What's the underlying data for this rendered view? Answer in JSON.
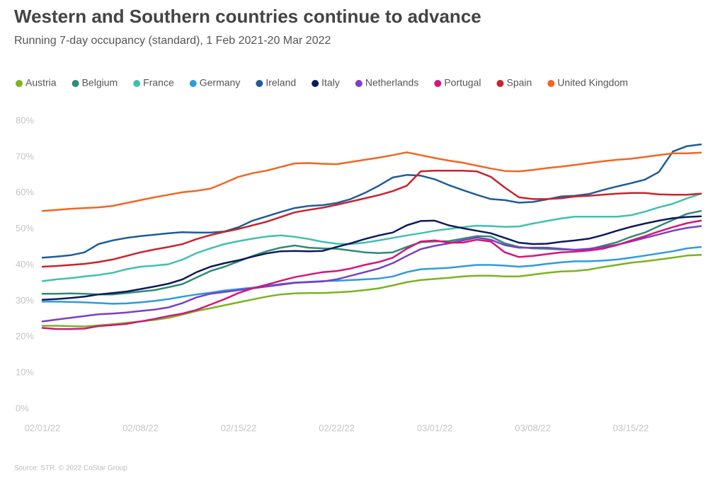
{
  "chart_data": {
    "type": "line",
    "title": "Western and Southern countries continue to advance",
    "subtitle": "Running 7-day occupancy (standard), 1 Feb 2021-20 Mar 2022",
    "source": "Source: STR. © 2022 CoStar Group",
    "categories": [
      "02/01/22",
      null,
      null,
      null,
      null,
      null,
      null,
      "02/08/22",
      null,
      null,
      null,
      null,
      null,
      null,
      "02/15/22",
      null,
      null,
      null,
      null,
      null,
      null,
      "02/22/22",
      null,
      null,
      null,
      null,
      null,
      null,
      "03/01/22",
      null,
      null,
      null,
      null,
      null,
      null,
      "03/08/22",
      null,
      null,
      null,
      null,
      null,
      null,
      "03/15/22",
      null,
      null,
      null,
      null,
      null
    ],
    "ylim": [
      0,
      80
    ],
    "yticks": [
      {
        "value": 0,
        "label": "0%"
      },
      {
        "value": 10,
        "label": "10%"
      },
      {
        "value": 20,
        "label": "20%"
      },
      {
        "value": 30,
        "label": "30%"
      },
      {
        "value": 40,
        "label": "40%"
      },
      {
        "value": 50,
        "label": "50%"
      },
      {
        "value": 60,
        "label": "60%"
      },
      {
        "value": 70,
        "label": "70%"
      },
      {
        "value": 80,
        "label": "80%"
      }
    ],
    "grid": false,
    "legend": "top",
    "series": [
      {
        "name": "Austria",
        "color": "#7ab41e",
        "values": [
          23.1,
          23.1,
          23,
          22.9,
          23.2,
          23.5,
          23.9,
          24.3,
          24.7,
          25.3,
          26.2,
          27.2,
          28,
          28.8,
          29.6,
          30.4,
          31.2,
          31.8,
          32.1,
          32.2,
          32.2,
          32.4,
          32.6,
          33,
          33.5,
          34.3,
          35.2,
          35.8,
          36.1,
          36.4,
          36.8,
          37,
          37,
          36.8,
          36.8,
          37.3,
          37.8,
          38.2,
          38.3,
          38.7,
          39.4,
          40,
          40.6,
          41,
          41.5,
          42,
          42.6,
          42.8
        ]
      },
      {
        "name": "Belgium",
        "color": "#2e8b74",
        "values": [
          32,
          32,
          32.1,
          32,
          31.8,
          31.8,
          32.2,
          32.6,
          33,
          33.8,
          34.7,
          36.5,
          38.3,
          39.5,
          41,
          42.5,
          43.8,
          44.8,
          45.4,
          44.8,
          44.6,
          44.5,
          44,
          43.5,
          43.3,
          43.5,
          45,
          46.3,
          46.5,
          46.6,
          47.3,
          48,
          47.9,
          46,
          45,
          44.6,
          44.5,
          44.3,
          44.2,
          44.3,
          45.3,
          46.3,
          47.8,
          49,
          50.8,
          52.5,
          54.2,
          55
        ]
      },
      {
        "name": "France",
        "color": "#40c0b0",
        "values": [
          35.5,
          36,
          36.3,
          36.8,
          37.2,
          37.8,
          38.8,
          39.5,
          39.8,
          40.2,
          41.5,
          43.3,
          44.6,
          45.8,
          46.6,
          47.3,
          47.9,
          48.2,
          47.8,
          47.2,
          46.4,
          45.9,
          45.8,
          46.2,
          46.8,
          47.5,
          48.2,
          48.8,
          49.5,
          50,
          50.5,
          50.9,
          50.8,
          50.6,
          50.7,
          51.5,
          52.2,
          52.9,
          53.4,
          53.4,
          53.4,
          53.4,
          53.8,
          54.8,
          56,
          57,
          58.5,
          59.8
        ]
      },
      {
        "name": "Germany",
        "color": "#2d9be0",
        "values": [
          29.8,
          29.8,
          29.7,
          29.6,
          29.4,
          29.2,
          29.3,
          29.6,
          30,
          30.5,
          31.2,
          31.8,
          32.3,
          32.9,
          33.3,
          33.7,
          34.2,
          34.7,
          35.1,
          35.3,
          35.5,
          35.6,
          35.8,
          36,
          36.2,
          36.8,
          38,
          38.8,
          39,
          39.2,
          39.6,
          40,
          40,
          39.8,
          39.5,
          39.8,
          40.3,
          40.7,
          41,
          41,
          41.2,
          41.5,
          42,
          42.6,
          43.2,
          43.8,
          44.6,
          45
        ]
      },
      {
        "name": "Ireland",
        "color": "#1f5c99",
        "values": [
          42,
          42.3,
          42.7,
          43.5,
          45.8,
          46.8,
          47.5,
          48,
          48.4,
          48.8,
          49.1,
          49,
          49,
          49.3,
          50.5,
          52.3,
          53.5,
          54.7,
          55.8,
          56.4,
          56.6,
          57.2,
          58.3,
          60,
          62,
          64.3,
          65,
          64.8,
          63.8,
          62.2,
          60.8,
          59.5,
          58.3,
          58,
          57.3,
          57.5,
          58.2,
          59,
          59.2,
          59.7,
          60.8,
          61.8,
          62.7,
          63.7,
          65.8,
          71.5,
          73,
          73.5
        ]
      },
      {
        "name": "Italy",
        "color": "#0d1a5b",
        "values": [
          30.3,
          30.5,
          30.8,
          31.2,
          31.8,
          32.2,
          32.6,
          33.3,
          34,
          34.8,
          36,
          38,
          39.5,
          40.5,
          41.3,
          42.3,
          43.2,
          43.8,
          43.9,
          43.8,
          43.9,
          45,
          46,
          47.2,
          48.2,
          49,
          51,
          52.2,
          52.3,
          51,
          50.2,
          49.5,
          48.8,
          47.5,
          46.2,
          45.8,
          45.9,
          46.4,
          46.8,
          47.3,
          48.3,
          49.5,
          50.6,
          51.5,
          52.3,
          53,
          53.3,
          53.5
        ]
      },
      {
        "name": "Netherlands",
        "color": "#7b3fc4",
        "values": [
          24.3,
          24.8,
          25.3,
          25.8,
          26.3,
          26.5,
          26.8,
          27.2,
          27.6,
          28.2,
          29.4,
          31,
          32,
          32.5,
          33,
          33.5,
          34,
          34.5,
          35,
          35.2,
          35.4,
          36,
          37,
          38,
          39,
          40.5,
          42.5,
          44.4,
          45.3,
          46,
          46.8,
          47.6,
          47,
          45.5,
          44.8,
          44.8,
          44.8,
          44.5,
          44.2,
          44.5,
          45,
          45.6,
          46.5,
          47.5,
          48.5,
          49.5,
          50.3,
          50.8
        ]
      },
      {
        "name": "Portugal",
        "color": "#d4157a",
        "values": [
          22.5,
          22.2,
          22.2,
          22.3,
          23,
          23.3,
          23.6,
          24.3,
          25,
          25.8,
          26.5,
          27.5,
          29,
          30.5,
          32.2,
          33.5,
          34.5,
          35.6,
          36.6,
          37.3,
          38,
          38.3,
          39,
          40,
          40.8,
          42,
          44.5,
          46.5,
          46.8,
          46.2,
          46.2,
          47,
          46.5,
          43.5,
          42.2,
          42.5,
          43,
          43.5,
          43.7,
          44,
          44.5,
          45.5,
          46.8,
          48,
          49.3,
          50.5,
          51.6,
          52.3
        ]
      },
      {
        "name": "Spain",
        "color": "#c8232c",
        "values": [
          39.5,
          39.7,
          40,
          40.3,
          40.8,
          41.5,
          42.5,
          43.5,
          44.3,
          45,
          45.8,
          47.2,
          48.3,
          49.2,
          50,
          51,
          52,
          53.3,
          54.6,
          55.3,
          55.9,
          56.7,
          57.6,
          58.5,
          59.4,
          60.5,
          62,
          66,
          66.2,
          66.2,
          66.2,
          66,
          64.5,
          61.5,
          58.8,
          58.3,
          58.3,
          58.5,
          59,
          59.2,
          59.5,
          59.8,
          60,
          60,
          59.6,
          59.5,
          59.5,
          59.8
        ]
      },
      {
        "name": "United Kingdom",
        "color": "#f26522",
        "values": [
          55,
          55.3,
          55.6,
          55.8,
          56,
          56.4,
          57.2,
          58,
          58.8,
          59.5,
          60.2,
          60.6,
          61.2,
          62.8,
          64.5,
          65.5,
          66.2,
          67.2,
          68.2,
          68.3,
          68.1,
          68,
          68.6,
          69.2,
          69.8,
          70.5,
          71.3,
          70.5,
          69.7,
          69,
          68.4,
          67.6,
          66.8,
          66.1,
          66,
          66.4,
          66.9,
          67.3,
          67.8,
          68.3,
          68.8,
          69.2,
          69.5,
          70,
          70.5,
          71,
          71,
          71.2
        ]
      }
    ]
  }
}
